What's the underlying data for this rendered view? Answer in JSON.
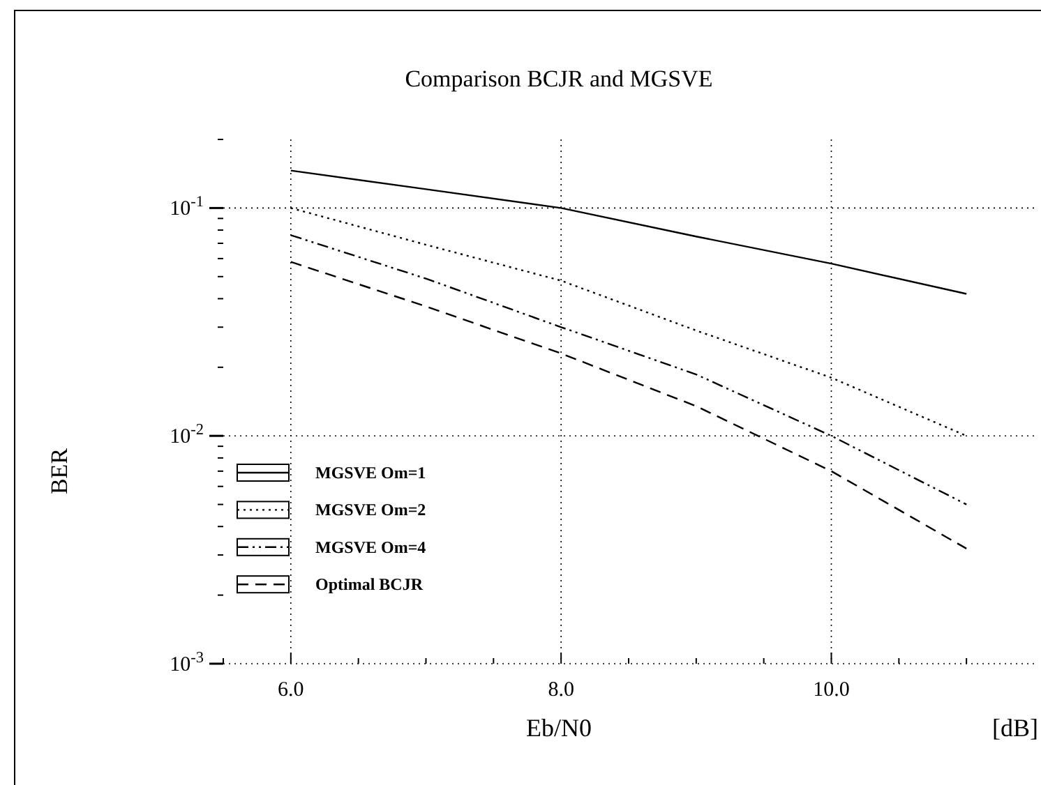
{
  "chart_data": {
    "type": "line",
    "title": "Comparison BCJR and MGSVE",
    "xlabel": "Eb/N0",
    "ylabel": "BER",
    "annotations": [
      "[dB]"
    ],
    "x": [
      6,
      7,
      8,
      9,
      10,
      11
    ],
    "series": [
      {
        "name": "MGSVE Om=1",
        "color": "#000000",
        "line_style": "solid",
        "values": [
          0.146,
          0.121,
          0.1,
          0.075,
          0.057,
          0.042
        ]
      },
      {
        "name": "MGSVE Om=2",
        "color": "#000000",
        "line_style": "dotted",
        "values": [
          0.1,
          0.069,
          0.048,
          0.029,
          0.018,
          0.01
        ]
      },
      {
        "name": "MGSVE Om=4",
        "color": "#000000",
        "line_style": "dashdot",
        "values": [
          0.076,
          0.049,
          0.03,
          0.0186,
          0.01,
          0.005
        ]
      },
      {
        "name": "Optimal BCJR",
        "color": "#000000",
        "line_style": "dashed",
        "values": [
          0.058,
          0.037,
          0.023,
          0.0135,
          0.007,
          0.0032
        ]
      }
    ],
    "xlim": [
      5.5,
      11.5
    ],
    "xticks": [
      {
        "value": 5.5,
        "label": null
      },
      {
        "value": 6,
        "label": "6.0"
      },
      {
        "value": 6.5,
        "label": null
      },
      {
        "value": 7,
        "label": null
      },
      {
        "value": 7.5,
        "label": null
      },
      {
        "value": 8,
        "label": "8.0"
      },
      {
        "value": 8.5,
        "label": null
      },
      {
        "value": 9,
        "label": null
      },
      {
        "value": 9.5,
        "label": null
      },
      {
        "value": 10,
        "label": "10.0"
      },
      {
        "value": 10.5,
        "label": null
      },
      {
        "value": 11,
        "label": null
      }
    ],
    "ylim": [
      0.001,
      0.2
    ],
    "yticks": [
      {
        "value": 0.001,
        "label": "10$^{-3}$"
      },
      {
        "value": 0.002,
        "label": null
      },
      {
        "value": 0.003,
        "label": null
      },
      {
        "value": 0.004,
        "label": null
      },
      {
        "value": 0.005,
        "label": null
      },
      {
        "value": 0.006,
        "label": null
      },
      {
        "value": 0.007,
        "label": null
      },
      {
        "value": 0.008,
        "label": null
      },
      {
        "value": 0.009,
        "label": null
      },
      {
        "value": 0.01,
        "label": "10$^{-2}$"
      },
      {
        "value": 0.02,
        "label": null
      },
      {
        "value": 0.03,
        "label": null
      },
      {
        "value": 0.04,
        "label": null
      },
      {
        "value": 0.05,
        "label": null
      },
      {
        "value": 0.06,
        "label": null
      },
      {
        "value": 0.07,
        "label": null
      },
      {
        "value": 0.08,
        "label": null
      },
      {
        "value": 0.09,
        "label": null
      },
      {
        "value": 0.1,
        "label": "10$^{-1}$"
      },
      {
        "value": 0.2,
        "label": null
      }
    ],
    "log": "y",
    "grid": true,
    "legend": "bottom left"
  }
}
